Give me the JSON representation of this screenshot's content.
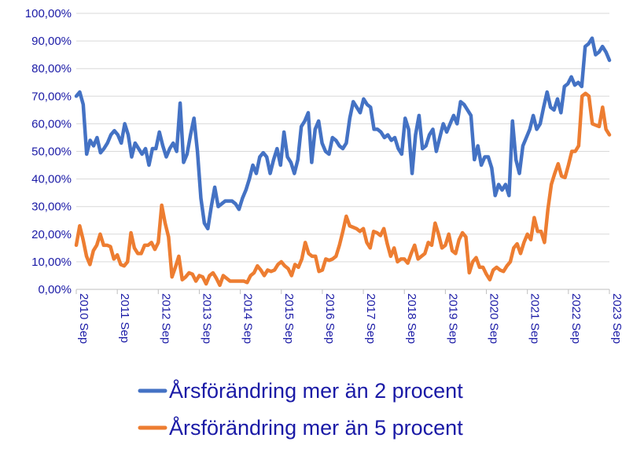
{
  "chart_data": {
    "type": "line",
    "title": "",
    "xlabel": "",
    "ylabel": "",
    "ylim": [
      0,
      100
    ],
    "y_ticks": [
      "0,00%",
      "10,00%",
      "20,00%",
      "30,00%",
      "40,00%",
      "50,00%",
      "60,00%",
      "70,00%",
      "80,00%",
      "90,00%",
      "100,00%"
    ],
    "x_ticks": [
      "2010 Sep",
      "2011 Sep",
      "2012 Sep",
      "2013 Sep",
      "2014 Sep",
      "2015 Sep",
      "2016 Sep",
      "2017 Sep",
      "2018 Sep",
      "2019 Sep",
      "2020 Sep",
      "2021 Sep",
      "2022 Sep",
      "2023 Sep"
    ],
    "grid": "horizontal",
    "legend_position": "bottom",
    "x_start": "2010-09",
    "x_end": "2023-09",
    "series": [
      {
        "name": "Årsförändring mer än 2 procent",
        "color": "#4472c4",
        "values": [
          70,
          71.5,
          67,
          49,
          54,
          52,
          55,
          49.5,
          51,
          53,
          56,
          57.5,
          56,
          53,
          60,
          56,
          48,
          53,
          51,
          49,
          51,
          45,
          51,
          51,
          57,
          52,
          48,
          51,
          53,
          50,
          67.5,
          46,
          49,
          56,
          62,
          50,
          33,
          24,
          22,
          30,
          37,
          30,
          31,
          32,
          32,
          32,
          31,
          29,
          33,
          36,
          40,
          45,
          42,
          48,
          49.5,
          48,
          42,
          47,
          51,
          45,
          57,
          48,
          46,
          42,
          47,
          59,
          61,
          64,
          46,
          58,
          61,
          53,
          50,
          49,
          55,
          54,
          52,
          51,
          53,
          62,
          68,
          66,
          64,
          69,
          67,
          66,
          58,
          58,
          57,
          55,
          56,
          54,
          55,
          51,
          49,
          62,
          58,
          42,
          56,
          63,
          51,
          52,
          56,
          58,
          50,
          55,
          60,
          57,
          60,
          63,
          60,
          68,
          67,
          65,
          63,
          47,
          52,
          45,
          48,
          48,
          44,
          34,
          38,
          36,
          38,
          34,
          61,
          47,
          42,
          52,
          55,
          58,
          63,
          58,
          60,
          66,
          71.5,
          66,
          65,
          69,
          64,
          73.5,
          74.5,
          77,
          74,
          75,
          73.5,
          88,
          89,
          91,
          85,
          86,
          88,
          86,
          83
        ]
      },
      {
        "name": "Årsförändring mer än 5 procent",
        "color": "#ed7d31",
        "values": [
          16,
          23,
          18,
          12,
          9,
          14,
          16,
          20,
          16,
          16,
          15.5,
          11,
          12.5,
          9,
          8.5,
          10,
          20.5,
          15,
          13,
          13,
          16,
          16,
          17,
          14.5,
          17,
          30.5,
          24,
          19,
          4.5,
          8,
          12,
          3.5,
          4.5,
          6,
          5.5,
          3,
          5,
          4.5,
          2,
          5,
          6,
          4,
          1.5,
          5,
          4,
          3,
          3,
          3,
          3,
          3,
          2.5,
          5,
          6,
          8.5,
          7,
          5,
          7,
          6.5,
          7,
          9,
          10,
          8.5,
          7.5,
          5,
          9,
          8,
          11,
          17,
          13,
          12,
          12,
          6.5,
          7,
          11,
          10.5,
          11,
          12,
          16,
          21,
          26.5,
          23,
          22.5,
          22,
          21,
          22,
          17,
          15,
          21,
          20.5,
          19.5,
          22,
          16.5,
          12,
          15,
          10,
          11,
          11,
          9.5,
          13,
          16,
          11,
          12,
          13,
          17,
          16,
          24,
          20,
          15,
          16,
          20,
          14,
          13,
          18,
          20.5,
          19,
          6,
          10,
          11.5,
          8,
          8,
          5.5,
          3.5,
          7,
          8,
          7,
          6.5,
          8.5,
          10,
          15,
          16.5,
          13,
          17,
          20,
          18,
          26,
          21,
          21,
          17,
          29,
          38,
          42,
          45.5,
          41,
          40.5,
          45,
          50,
          50,
          52,
          70,
          71,
          70,
          60,
          59.5,
          59,
          66,
          58,
          56
        ]
      }
    ]
  }
}
